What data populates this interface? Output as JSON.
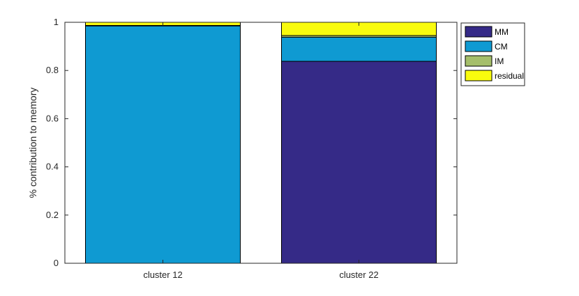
{
  "chart_data": {
    "type": "bar",
    "stacked": true,
    "categories": [
      "cluster 12",
      "cluster 22"
    ],
    "series": [
      {
        "name": "MM",
        "color": "#352a87",
        "values": [
          0.0,
          0.838
        ]
      },
      {
        "name": "CM",
        "color": "#0f9ad2",
        "values": [
          0.985,
          0.1
        ]
      },
      {
        "name": "IM",
        "color": "#a5be6a",
        "values": [
          0.002,
          0.007
        ]
      },
      {
        "name": "residual",
        "color": "#f9fb0e",
        "values": [
          0.013,
          0.055
        ]
      }
    ],
    "title": "",
    "xlabel": "",
    "ylabel": "% contribution to memory",
    "ylim": [
      0,
      1
    ],
    "yticks": [
      "0",
      "0.2",
      "0.4",
      "0.6",
      "0.8",
      "1"
    ],
    "legend_position": "outside-top-right",
    "grid": false
  }
}
